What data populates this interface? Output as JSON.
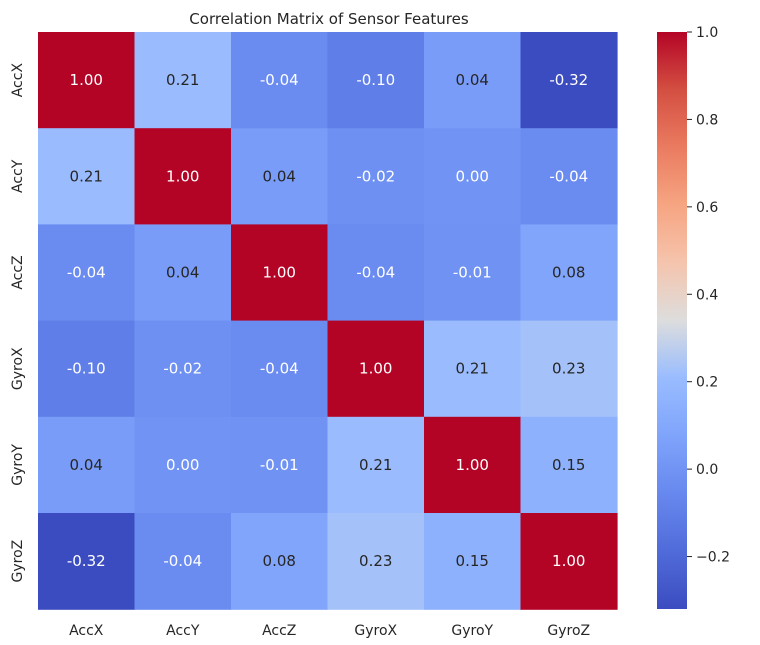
{
  "chart_data": {
    "type": "heatmap",
    "title": "Correlation Matrix of Sensor Features",
    "x_labels": [
      "AccX",
      "AccY",
      "AccZ",
      "GyroX",
      "GyroY",
      "GyroZ"
    ],
    "y_labels": [
      "AccX",
      "AccY",
      "AccZ",
      "GyroX",
      "GyroY",
      "GyroZ"
    ],
    "values": [
      [
        1.0,
        0.21,
        -0.04,
        -0.1,
        0.04,
        -0.32
      ],
      [
        0.21,
        1.0,
        0.04,
        -0.02,
        0.0,
        -0.04
      ],
      [
        -0.04,
        0.04,
        1.0,
        -0.04,
        -0.01,
        0.08
      ],
      [
        -0.1,
        -0.02,
        -0.04,
        1.0,
        0.21,
        0.23
      ],
      [
        0.04,
        0.0,
        -0.01,
        0.21,
        1.0,
        0.15
      ],
      [
        -0.32,
        -0.04,
        0.08,
        0.23,
        0.15,
        1.0
      ]
    ],
    "cell_labels": [
      [
        "1.00",
        "0.21",
        "-0.04",
        "-0.10",
        "0.04",
        "-0.32"
      ],
      [
        "0.21",
        "1.00",
        "0.04",
        "-0.02",
        "0.00",
        "-0.04"
      ],
      [
        "-0.04",
        "0.04",
        "1.00",
        "-0.04",
        "-0.01",
        "0.08"
      ],
      [
        "-0.10",
        "-0.02",
        "-0.04",
        "1.00",
        "0.21",
        "0.23"
      ],
      [
        "0.04",
        "0.00",
        "-0.01",
        "0.21",
        "1.00",
        "0.15"
      ],
      [
        "-0.32",
        "-0.04",
        "0.08",
        "0.23",
        "0.15",
        "1.00"
      ]
    ],
    "colormap": "coolwarm",
    "vmin": -0.32,
    "vmax": 1.0,
    "colorbar": {
      "ticks": [
        -0.2,
        0.0,
        0.2,
        0.4,
        0.6,
        0.8,
        1.0
      ],
      "tick_labels": [
        "−0.2",
        "0.0",
        "0.2",
        "0.4",
        "0.6",
        "0.8",
        "1.0"
      ],
      "placement": "right"
    },
    "annotations": true,
    "grid": false
  }
}
